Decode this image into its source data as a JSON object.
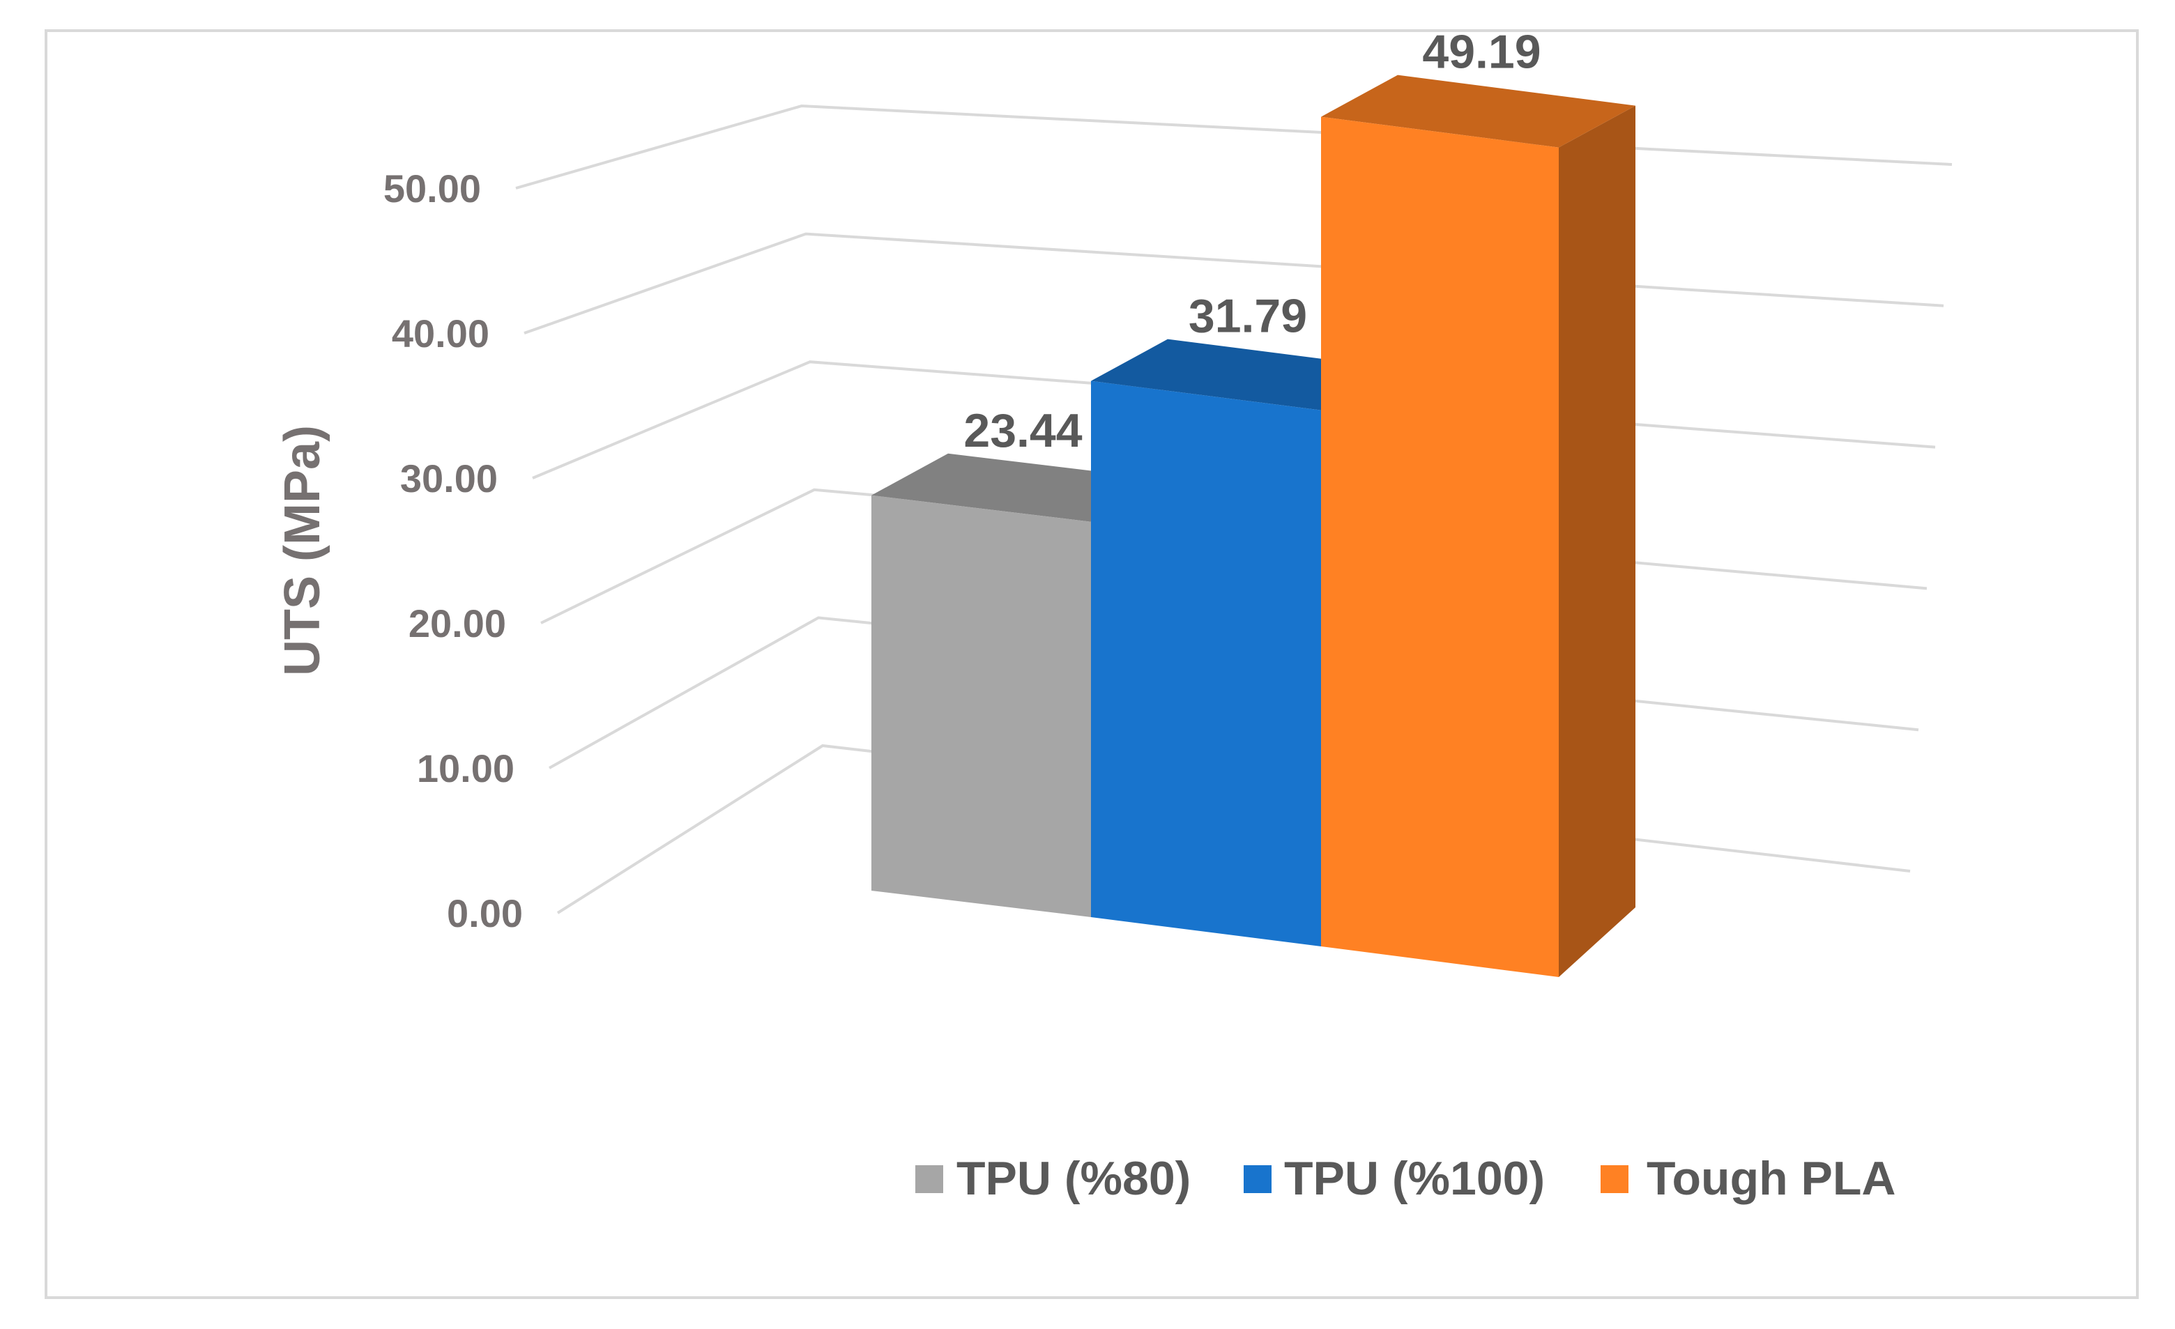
{
  "chart_data": {
    "type": "bar",
    "style": "3d-column",
    "categories": [
      "TPU (%80)",
      "TPU (%100)",
      "Tough PLA"
    ],
    "values": [
      23.44,
      31.79,
      49.19
    ],
    "data_labels": [
      "23.44",
      "31.79",
      "49.19"
    ],
    "colors": [
      "#a6a6a6",
      "#1874cd",
      "#ff8123"
    ],
    "title": "",
    "xlabel": "",
    "ylabel": "UTS (MPa)",
    "ylim": [
      0,
      50
    ],
    "yticks": [
      "0.00",
      "10.00",
      "20.00",
      "30.00",
      "40.00",
      "50.00"
    ],
    "grid": true,
    "legend": {
      "position": "bottom-right",
      "entries": [
        "TPU (%80)",
        "TPU (%100)",
        "Tough PLA"
      ]
    }
  }
}
